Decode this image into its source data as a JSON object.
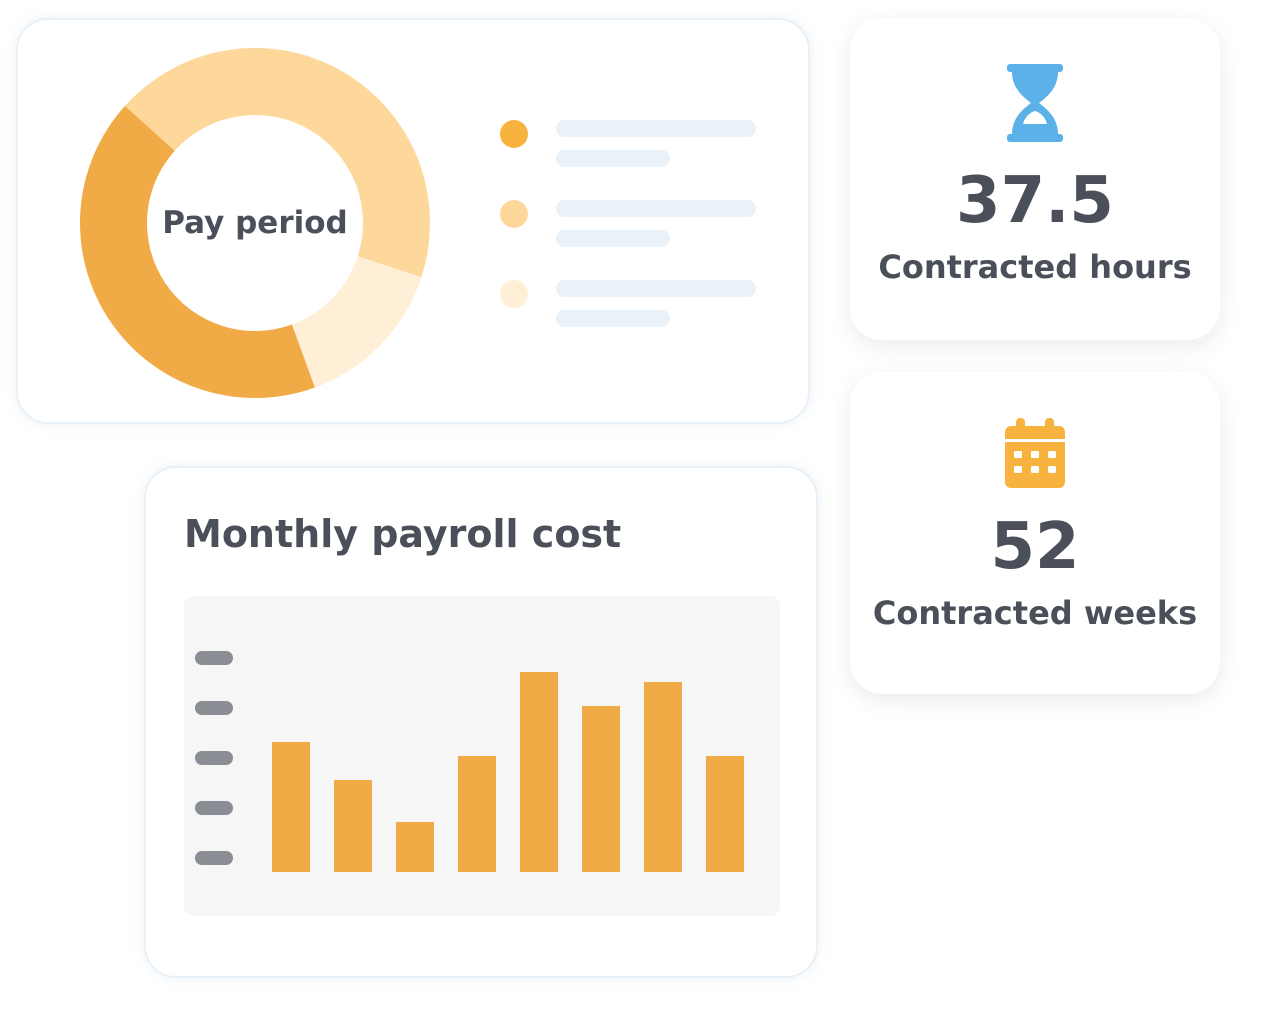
{
  "pay_period": {
    "label": "Pay period",
    "colors": {
      "segment_dark": "#f1ab46",
      "segment_mid": "#fed89b",
      "segment_light": "#feefd6",
      "legend_line": "#e9f2f9"
    },
    "legend_dots": [
      "#f7b33e",
      "#fed89b",
      "#feefd6"
    ]
  },
  "hours": {
    "icon": "hourglass-icon",
    "icon_color": "#5cb2e8",
    "value": "37.5",
    "label": "Contracted hours"
  },
  "weeks": {
    "icon": "calendar-icon",
    "icon_color": "#f7b33e",
    "value": "52",
    "label": "Contracted weeks"
  },
  "payroll": {
    "title": "Monthly payroll cost",
    "bar_color": "#f1ab46",
    "tick_color": "#8a8d93",
    "background": "#f6f6f7"
  },
  "chart_data": {
    "type": "bar",
    "title": "Monthly payroll cost",
    "categories": [
      "",
      "",
      "",
      "",
      "",
      "",
      "",
      ""
    ],
    "values": [
      65,
      46,
      25,
      58,
      100,
      83,
      95,
      58
    ],
    "ylim": [
      0,
      100
    ],
    "ytick_count": 5,
    "grid": false
  }
}
